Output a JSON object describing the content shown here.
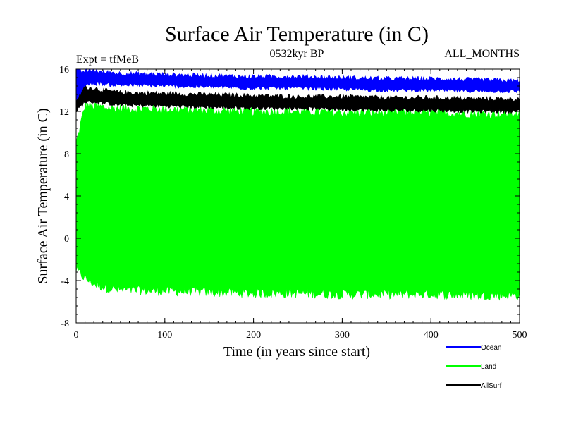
{
  "chart_data": {
    "type": "line",
    "title": "Surface Air Temperature (in C)",
    "subtitle": "0532kyr BP",
    "annotation_left": "Expt = tfMeB",
    "annotation_right": "ALL_MONTHS",
    "xlabel": "Time (in years since start)",
    "ylabel": "Surface Air Temperature (in C)",
    "xlim": [
      0,
      500
    ],
    "ylim": [
      -8,
      16
    ],
    "xticks": [
      0,
      100,
      200,
      300,
      400,
      500
    ],
    "yticks": [
      -8,
      -4,
      0,
      4,
      8,
      12,
      16
    ],
    "xtick_labels": [
      "0",
      "100",
      "200",
      "300",
      "400",
      "500"
    ],
    "ytick_labels": [
      "-8",
      "-4",
      "0",
      "4",
      "8",
      "12",
      "16"
    ],
    "grid": false,
    "legend_position": "bottom-right",
    "series": [
      {
        "name": "Ocean",
        "color": "#0000ff",
        "x": [
          0,
          10,
          20,
          30,
          40,
          50,
          100,
          150,
          200,
          250,
          300,
          350,
          400,
          450,
          500
        ],
        "upper": [
          15.8,
          15.8,
          15.9,
          15.7,
          15.7,
          15.6,
          15.5,
          15.4,
          15.3,
          15.3,
          15.2,
          15.1,
          15.1,
          15.0,
          14.9
        ],
        "lower": [
          13.0,
          14.5,
          14.6,
          14.6,
          14.5,
          14.5,
          14.4,
          14.3,
          14.2,
          14.2,
          14.1,
          14.0,
          14.0,
          13.9,
          13.9
        ]
      },
      {
        "name": "Land",
        "color": "#00ff00",
        "x": [
          0,
          10,
          20,
          30,
          40,
          50,
          100,
          150,
          200,
          250,
          300,
          350,
          400,
          450,
          500
        ],
        "upper": [
          9.0,
          12.6,
          12.5,
          12.4,
          12.3,
          12.3,
          12.2,
          12.1,
          12.0,
          12.0,
          11.9,
          11.9,
          11.9,
          11.8,
          11.8
        ],
        "lower": [
          -3.0,
          -3.8,
          -4.3,
          -4.6,
          -4.8,
          -4.9,
          -5.0,
          -5.1,
          -5.2,
          -5.2,
          -5.3,
          -5.3,
          -5.3,
          -5.4,
          -5.4
        ]
      },
      {
        "name": "AllSurf",
        "color": "#000000",
        "x": [
          0,
          10,
          20,
          30,
          40,
          50,
          100,
          150,
          200,
          250,
          300,
          350,
          400,
          450,
          500
        ],
        "upper": [
          14.2,
          14.3,
          14.2,
          14.0,
          13.9,
          13.8,
          13.7,
          13.6,
          13.5,
          13.4,
          13.4,
          13.3,
          13.3,
          13.2,
          13.2
        ],
        "lower": [
          12.0,
          12.9,
          12.9,
          12.8,
          12.7,
          12.6,
          12.5,
          12.4,
          12.3,
          12.3,
          12.2,
          12.1,
          12.1,
          12.0,
          12.0
        ]
      }
    ]
  }
}
